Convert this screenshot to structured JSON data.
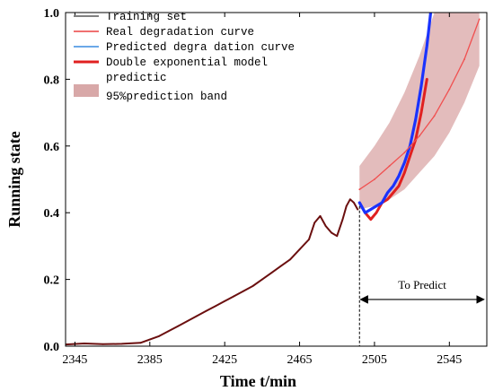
{
  "chart_data": {
    "type": "line",
    "xlabel": "Time t/min",
    "ylabel": "Running state",
    "xlim": [
      2340,
      2565
    ],
    "ylim": [
      0,
      1.0
    ],
    "x_ticks": [
      "2345",
      "2385",
      "2425",
      "2465",
      "2505",
      "2545"
    ],
    "x_tick_values": [
      2345,
      2385,
      2425,
      2465,
      2505,
      2545
    ],
    "y_ticks": [
      "0.0",
      "0.2",
      "0.4",
      "0.6",
      "0.8",
      "1.0"
    ],
    "y_tick_values": [
      0,
      0.2,
      0.4,
      0.6,
      0.8,
      1.0
    ],
    "grid": false,
    "legend_position": "top-left",
    "legend": [
      {
        "label": "Training set",
        "color": "#808080",
        "kind": "line"
      },
      {
        "label": "Real degradation curve",
        "color": "#f07070",
        "kind": "line"
      },
      {
        "label": "Predicted degra dation curve",
        "color": "#6aa8e8",
        "kind": "line"
      },
      {
        "label": "Double exponential model",
        "color": "#e02020",
        "kind": "line"
      },
      {
        "label": "predictic",
        "color": "",
        "kind": "none"
      },
      {
        "label": "95%prediction band",
        "color": "#d8a8a8",
        "kind": "patch"
      }
    ],
    "series": [
      {
        "name": "Training set",
        "color": "#6b0f0f",
        "x": [
          2340,
          2350,
          2360,
          2370,
          2380,
          2385,
          2390,
          2395,
          2400,
          2405,
          2410,
          2415,
          2420,
          2425,
          2430,
          2435,
          2440,
          2445,
          2450,
          2455,
          2460,
          2465,
          2470,
          2473,
          2476,
          2479,
          2482,
          2485,
          2488,
          2490,
          2492,
          2494,
          2496
        ],
        "y": [
          0.005,
          0.008,
          0.006,
          0.007,
          0.01,
          0.02,
          0.03,
          0.045,
          0.06,
          0.075,
          0.09,
          0.105,
          0.12,
          0.135,
          0.15,
          0.165,
          0.18,
          0.2,
          0.22,
          0.24,
          0.26,
          0.29,
          0.32,
          0.37,
          0.39,
          0.36,
          0.34,
          0.33,
          0.38,
          0.42,
          0.44,
          0.43,
          0.41
        ]
      },
      {
        "name": "Double exponential model",
        "color": "#e02020",
        "x": [
          2497,
          2500,
          2503,
          2506,
          2509,
          2512,
          2515,
          2518,
          2521,
          2524,
          2527,
          2530,
          2533
        ],
        "y": [
          0.43,
          0.4,
          0.38,
          0.4,
          0.43,
          0.44,
          0.46,
          0.48,
          0.52,
          0.57,
          0.62,
          0.7,
          0.8
        ]
      },
      {
        "name": "Predicted degra dation curve",
        "color": "#1a33ff",
        "x": [
          2497,
          2500,
          2503,
          2506,
          2509,
          2512,
          2515,
          2518,
          2521,
          2524,
          2527,
          2530,
          2533,
          2535
        ],
        "y": [
          0.43,
          0.4,
          0.41,
          0.42,
          0.43,
          0.46,
          0.48,
          0.51,
          0.55,
          0.6,
          0.68,
          0.78,
          0.9,
          1.0
        ]
      },
      {
        "name": "Real degradation curve",
        "color": "#f05050",
        "x": [
          2497,
          2505,
          2513,
          2521,
          2529,
          2537,
          2545,
          2553,
          2561
        ],
        "y": [
          0.47,
          0.5,
          0.54,
          0.58,
          0.63,
          0.69,
          0.77,
          0.86,
          0.98
        ]
      }
    ],
    "prediction_band": {
      "name": "95%prediction band",
      "color": "#d9a5a5",
      "x": [
        2497,
        2505,
        2513,
        2521,
        2529,
        2537,
        2545,
        2553,
        2561
      ],
      "upper": [
        0.54,
        0.6,
        0.67,
        0.76,
        0.87,
        1.0,
        1.0,
        1.0,
        1.0
      ],
      "lower": [
        0.41,
        0.42,
        0.44,
        0.47,
        0.52,
        0.57,
        0.64,
        0.73,
        0.84
      ]
    },
    "annotations": [
      {
        "text": "To Predict",
        "x_start": 2497,
        "x_end": 2564,
        "y": 0.14
      }
    ],
    "split_line_x": 2497
  }
}
